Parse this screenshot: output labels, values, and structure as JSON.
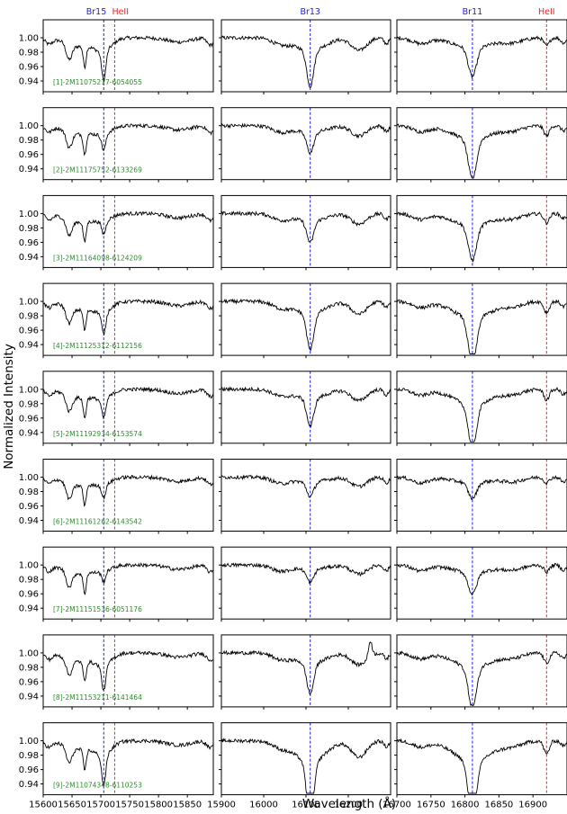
{
  "chart_data": {
    "type": "line",
    "ylabel": "Normalized Intensity",
    "xlabel": "Wavelength (Å)",
    "ylim": [
      0.925,
      1.025
    ],
    "y_ticks": [
      0.94,
      0.96,
      0.98,
      1.0
    ],
    "y_tick_labels": [
      "0.94",
      "0.96",
      "0.98",
      "1.00"
    ],
    "grid": false,
    "legend": "none",
    "colors": {
      "spectrum": "#000000",
      "hydrogen_line": "#1a1aff",
      "helium_line": "#ff2020",
      "star_label": "#2e8b2e"
    },
    "columns": [
      {
        "xlim": [
          15600,
          15895
        ],
        "x_ticks": [
          15600,
          15650,
          15700,
          15750,
          15800,
          15850
        ],
        "x_tick_labels": [
          "15600",
          "15650",
          "15700",
          "15750",
          "15800",
          "15850"
        ]
      },
      {
        "xlim": [
          15900,
          16300
        ],
        "x_ticks": [
          15900,
          16000,
          16100,
          16200
        ],
        "x_tick_labels": [
          "15900",
          "16000",
          "16100",
          "16200"
        ]
      },
      {
        "xlim": [
          16700,
          16950
        ],
        "x_ticks": [
          16700,
          16750,
          16800,
          16850,
          16900
        ],
        "x_tick_labels": [
          "16700",
          "16750",
          "16800",
          "16850",
          "16900"
        ]
      }
    ],
    "marker_lines": [
      {
        "label": "Br15",
        "column": 0,
        "x": 15705,
        "color": "#1a1aff"
      },
      {
        "label": "HeII",
        "column": 0,
        "x": 15724,
        "color": "#ff2020"
      },
      {
        "label": "Br13",
        "column": 1,
        "x": 16110,
        "color": "#1a1aff"
      },
      {
        "label": "Br11",
        "column": 2,
        "x": 16811,
        "color": "#1a1aff"
      },
      {
        "label": "HeII",
        "column": 2,
        "x": 16920,
        "color": "#ff2020"
      }
    ],
    "stars": [
      {
        "label": "[1]-2M11075217-6054055",
        "depths": [
          0.04,
          0.05,
          0.04
        ]
      },
      {
        "label": "[2]-2M11175752-6133269",
        "depths": [
          0.022,
          0.028,
          0.055
        ]
      },
      {
        "label": "[3]-2M11164098-6124209",
        "depths": [
          0.018,
          0.03,
          0.048
        ]
      },
      {
        "label": "[4]-2M11125312-6112156",
        "depths": [
          0.03,
          0.05,
          0.065
        ]
      },
      {
        "label": "[5]-2M11192934-6153574",
        "depths": [
          0.026,
          0.038,
          0.06
        ]
      },
      {
        "label": "[6]-2M11161262-6143542",
        "depths": [
          0.018,
          0.02,
          0.022
        ]
      },
      {
        "label": "[7]-2M11151536-6051176",
        "depths": [
          0.014,
          0.018,
          0.03
        ]
      },
      {
        "label": "[8]-2M11153211-6141464",
        "depths": [
          0.035,
          0.042,
          0.056
        ]
      },
      {
        "label": "[9]-2M11074348-6110253",
        "depths": [
          0.042,
          0.085,
          0.08
        ]
      }
    ]
  }
}
